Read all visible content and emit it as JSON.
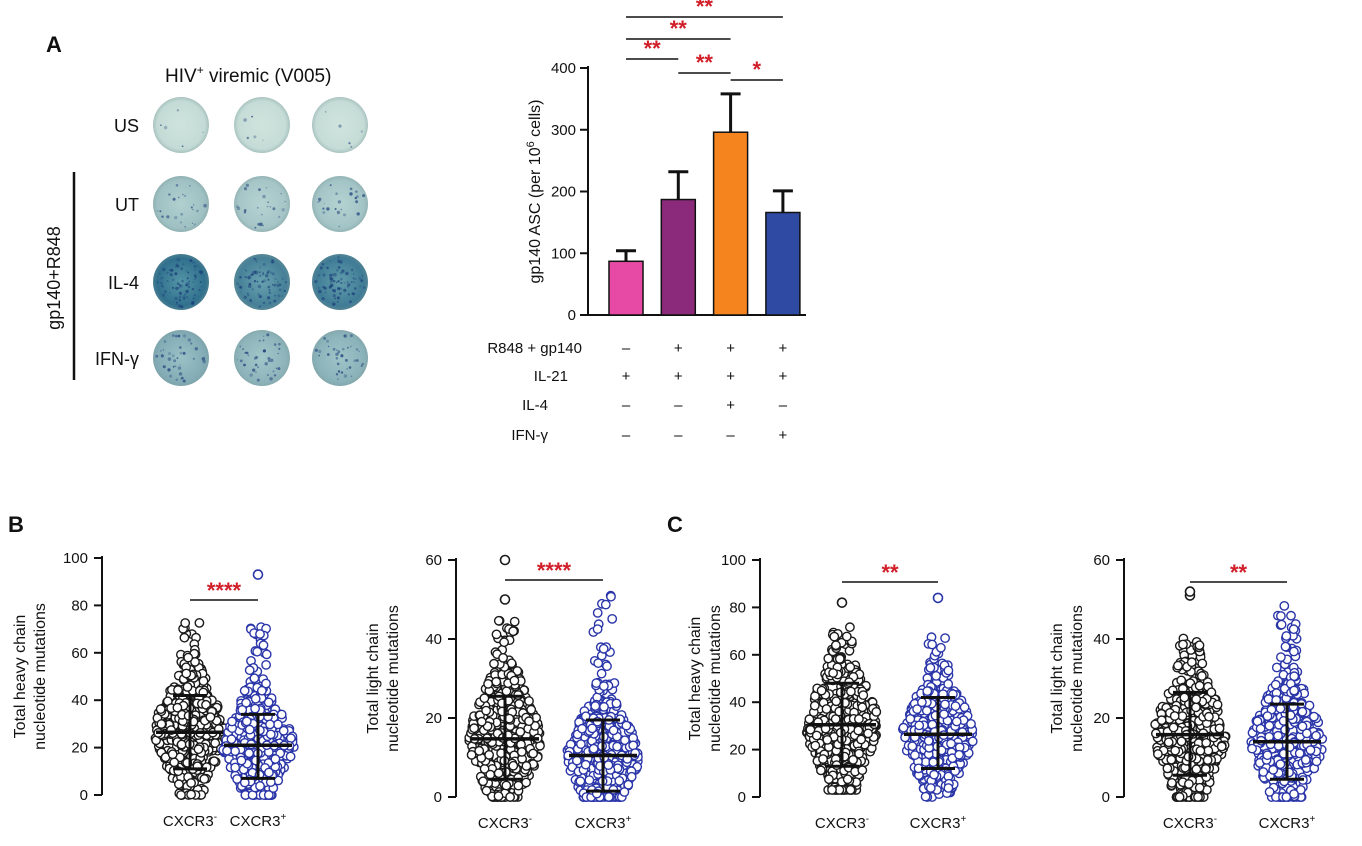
{
  "panel_a": {
    "letter": "A",
    "wells": {
      "title_main": "HIV",
      "title_sup": "+",
      "title_rest": " viremic (V005)",
      "group_label": "gp140+R848",
      "rows": [
        {
          "label": "US",
          "intensity": 0.05
        },
        {
          "label": "UT",
          "intensity": 0.25
        },
        {
          "label": "IL-4",
          "intensity": 0.85
        },
        {
          "label": "IFN-γ",
          "intensity": 0.4
        }
      ]
    }
  },
  "chart_data": [
    {
      "id": "A-bar",
      "type": "bar",
      "ylabel_pre": "gp140 ASC (per 10",
      "ylabel_sup": "6",
      "ylabel_post": " cells)",
      "ylim": [
        0,
        400
      ],
      "yticks": [
        "0",
        "100",
        "200",
        "300",
        "400"
      ],
      "values": [
        87,
        187,
        296,
        166
      ],
      "errors": [
        17,
        45,
        62,
        35
      ],
      "colors": [
        "#e64aa4",
        "#8b2a7a",
        "#f5841f",
        "#2f4aa3"
      ],
      "significance": [
        {
          "from": 0,
          "to": 1,
          "label": "**"
        },
        {
          "from": 1,
          "to": 2,
          "label": "**"
        },
        {
          "from": 2,
          "to": 3,
          "label": "*"
        },
        {
          "from": 0,
          "to": 2,
          "label": "**"
        },
        {
          "from": 0,
          "to": 3,
          "label": "**"
        }
      ],
      "conditions": [
        {
          "name": "R848 + gp140",
          "marks": [
            "–",
            "+",
            "+",
            "+"
          ]
        },
        {
          "name": "IL-21",
          "marks": [
            "+",
            "+",
            "+",
            "+"
          ]
        },
        {
          "name": "IL-4",
          "marks": [
            "–",
            "–",
            "+",
            "–"
          ]
        },
        {
          "name": "IFN-γ",
          "marks": [
            "–",
            "–",
            "–",
            "+"
          ]
        }
      ]
    },
    {
      "id": "B-heavy",
      "panel_letter": "B",
      "type": "scatter",
      "ylabel_1": "Total heavy chain",
      "ylabel_2": "nucleotide mutations",
      "ylim": [
        0,
        100
      ],
      "yticks": [
        "0",
        "20",
        "40",
        "60",
        "80",
        "100"
      ],
      "groups": [
        {
          "name": "CXCR3",
          "sup": "-",
          "mean": 26.5,
          "sd_low": 11,
          "sd_high": 42,
          "min": 0,
          "max": 73,
          "outliers": []
        },
        {
          "name": "CXCR3",
          "sup": "+",
          "mean": 21,
          "sd_low": 7,
          "sd_high": 34,
          "min": 0,
          "max": 71,
          "outliers": [
            93
          ]
        }
      ],
      "significance": "****"
    },
    {
      "id": "B-light",
      "type": "scatter",
      "ylabel_1": "Total light chain",
      "ylabel_2": "nucleotide mutations",
      "ylim": [
        0,
        60
      ],
      "yticks": [
        "0",
        "20",
        "40",
        "60"
      ],
      "groups": [
        {
          "name": "CXCR3",
          "sup": "-",
          "mean": 14.7,
          "sd_low": 4.5,
          "sd_high": 25.5,
          "min": 0,
          "max": 45,
          "outliers": [
            50,
            60
          ]
        },
        {
          "name": "CXCR3",
          "sup": "+",
          "mean": 10.5,
          "sd_low": 1.5,
          "sd_high": 19.5,
          "min": 0,
          "max": 51,
          "outliers": []
        }
      ],
      "significance": "****"
    },
    {
      "id": "C-heavy",
      "panel_letter": "C",
      "type": "scatter",
      "ylabel_1": "Total heavy chain",
      "ylabel_2": "nucleotide mutations",
      "ylim": [
        0,
        100
      ],
      "yticks": [
        "0",
        "20",
        "40",
        "60",
        "80",
        "100"
      ],
      "groups": [
        {
          "name": "CXCR3",
          "sup": "-",
          "mean": 30.5,
          "sd_low": 13,
          "sd_high": 48,
          "min": 3,
          "max": 72,
          "outliers": [
            82
          ]
        },
        {
          "name": "CXCR3",
          "sup": "+",
          "mean": 26.5,
          "sd_low": 12,
          "sd_high": 42,
          "min": 0,
          "max": 68,
          "outliers": [
            84
          ]
        }
      ],
      "significance": "**"
    },
    {
      "id": "C-light",
      "type": "scatter",
      "ylabel_1": "Total light chain",
      "ylabel_2": "nucleotide mutations",
      "ylim": [
        0,
        60
      ],
      "yticks": [
        "0",
        "20",
        "40",
        "60"
      ],
      "groups": [
        {
          "name": "CXCR3",
          "sup": "-",
          "mean": 15.8,
          "sd_low": 5.5,
          "sd_high": 26.5,
          "min": 0,
          "max": 41,
          "outliers": [
            51,
            52
          ]
        },
        {
          "name": "CXCR3",
          "sup": "+",
          "mean": 14,
          "sd_low": 4.5,
          "sd_high": 23.5,
          "min": 0,
          "max": 49,
          "outliers": []
        }
      ],
      "significance": "**"
    }
  ]
}
